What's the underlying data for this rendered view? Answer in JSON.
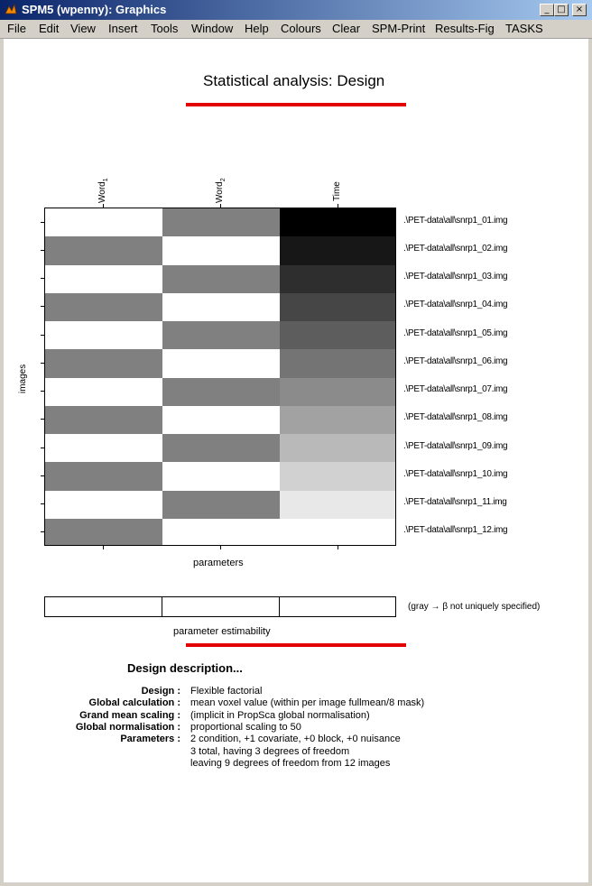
{
  "window": {
    "title": "SPM5 (wpenny): Graphics",
    "icon": "matlab-icon"
  },
  "window_buttons": [
    "minimize",
    "maximize",
    "close"
  ],
  "menu": [
    "File",
    "Edit",
    "View",
    "Insert",
    "Tools",
    "Window",
    "Help",
    "Colours",
    "Clear",
    "SPM-Print",
    "Results-Fig",
    "TASKS"
  ],
  "figure": {
    "heading": "Statistical analysis: Design",
    "accent_color": "#e30000",
    "columns": [
      "Word1",
      "Word2",
      "Time"
    ],
    "column_display": [
      {
        "base": "Word",
        "sub": "1"
      },
      {
        "base": "Word",
        "sub": "2"
      },
      {
        "base": "Time",
        "sub": ""
      }
    ],
    "rows": [
      ".\\PET-data\\all\\snrp1_01.img",
      ".\\PET-data\\all\\snrp1_02.img",
      ".\\PET-data\\all\\snrp1_03.img",
      ".\\PET-data\\all\\snrp1_04.img",
      ".\\PET-data\\all\\snrp1_05.img",
      ".\\PET-data\\all\\snrp1_06.img",
      ".\\PET-data\\all\\snrp1_07.img",
      ".\\PET-data\\all\\snrp1_08.img",
      ".\\PET-data\\all\\snrp1_09.img",
      ".\\PET-data\\all\\snrp1_10.img",
      ".\\PET-data\\all\\snrp1_11.img",
      ".\\PET-data\\all\\snrp1_12.img"
    ],
    "matrix_gray_levels": [
      [
        1.0,
        0.5,
        0.0
      ],
      [
        0.5,
        1.0,
        0.0909
      ],
      [
        1.0,
        0.5,
        0.1818
      ],
      [
        0.5,
        1.0,
        0.2727
      ],
      [
        1.0,
        0.5,
        0.3636
      ],
      [
        0.5,
        1.0,
        0.4545
      ],
      [
        1.0,
        0.5,
        0.5455
      ],
      [
        0.5,
        1.0,
        0.6364
      ],
      [
        1.0,
        0.5,
        0.7273
      ],
      [
        0.5,
        1.0,
        0.8182
      ],
      [
        1.0,
        0.5,
        0.9091
      ],
      [
        0.5,
        1.0,
        1.0
      ]
    ],
    "ylabel": "images",
    "xlabel": "parameters",
    "estimability_label": "parameter estimability",
    "estimability_note": "(gray → β not uniquely specified)",
    "description": {
      "heading": "Design description...",
      "rows": [
        {
          "key": "Design :",
          "values": [
            "Flexible factorial"
          ]
        },
        {
          "key": "Global calculation :",
          "values": [
            "mean voxel value (within per image fullmean/8 mask)"
          ]
        },
        {
          "key": "Grand mean scaling :",
          "values": [
            "(implicit in PropSca global normalisation)"
          ]
        },
        {
          "key": "Global normalisation :",
          "values": [
            "proportional scaling to 50"
          ]
        },
        {
          "key": "Parameters :",
          "values": [
            "2 condition, +1 covariate, +0 block, +0 nuisance",
            "3 total, having 3 degrees of freedom",
            "leaving 9 degrees of freedom from 12 images"
          ]
        }
      ]
    }
  }
}
